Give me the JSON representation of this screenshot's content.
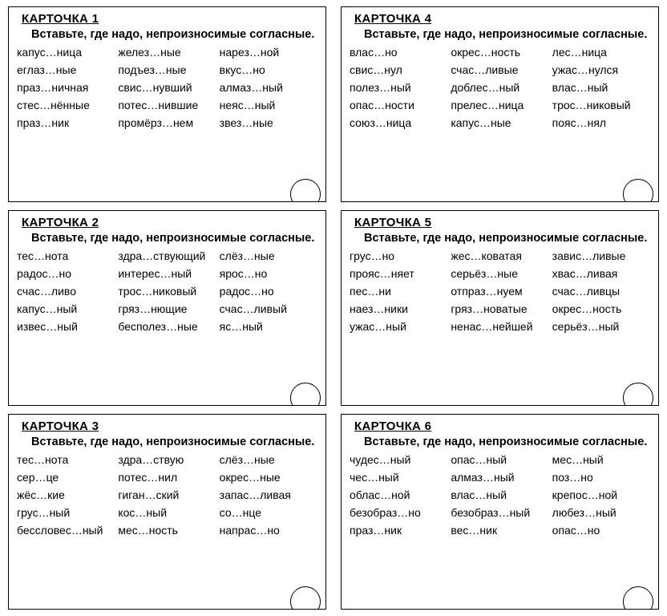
{
  "instruction": "Вставьте, где надо, непроизносимые со­гласные.",
  "cards": [
    {
      "title": "КАРТОЧКА 1",
      "words": [
        "капус…ница",
        "желез…ные",
        "нарез…ной",
        "еглаз…ные",
        "подъез…ные",
        "вкус…но",
        "праз…ничная",
        "свис…нувший",
        "алмаз…ный",
        "стес…нённые",
        "потес…нившие",
        "неяс…ный",
        "праз…ник",
        "промёрз…нем",
        "звез…ные"
      ]
    },
    {
      "title": "КАРТОЧКА 4",
      "words": [
        "влас…но",
        "окрес…ность",
        "лес…ница",
        "свис…нул",
        "счас…ливые",
        "ужас…нулся",
        "полез…ный",
        "доблес…ный",
        "влас…ный",
        "опас…ности",
        "прелес…ница",
        "трос…никовый",
        "союз…ница",
        "капус…ные",
        "пояс…нял"
      ]
    },
    {
      "title": "КАРТОЧКА 2",
      "words": [
        "тес…нота",
        "здра…ствующий",
        "слёз…ные",
        "радос…но",
        "интерес…ный",
        "ярос…но",
        "счас…ливо",
        "трос…никовый",
        "радос…но",
        "капус…ный",
        "гряз…нющие",
        "счас…ливый",
        "извес…ный",
        "бесполез…ные",
        "яс…ный"
      ]
    },
    {
      "title": "КАРТОЧКА 5",
      "words": [
        "грус…но",
        "жес…коватая",
        "завис…ливые",
        "прояс…няет",
        "серьёз…ные",
        "хвас…ливая",
        "пес…ни",
        "отпраз…нуем",
        "счас…ливцы",
        "наез…ники",
        "гряз…новатые",
        "окрес…ность",
        "ужас…ный",
        "ненас…нейшей",
        "серьёз…ный"
      ]
    },
    {
      "title": "КАРТОЧКА 3",
      "words": [
        "тес…нота",
        "здра…ствую",
        "слёз…ные",
        "сер…це",
        "потес…нил",
        "окрес…ные",
        "жёс…кие",
        "гиган…ский",
        "запас…ливая",
        "грус…ный",
        "кос…ный",
        "со…нце",
        "бесcловес…ный",
        "мес…ность",
        "напрас…но"
      ]
    },
    {
      "title": "КАРТОЧКА 6",
      "words": [
        "чудес…ный",
        "опас…ный",
        "мес…ный",
        "чес…ный",
        "алмаз…ный",
        "поз…но",
        "облас…ной",
        "влас…ный",
        "крепос…ной",
        "безобраз…но",
        "безобраз…ный",
        "любез…ный",
        "праз…ник",
        "вес…ник",
        "опас…но"
      ]
    }
  ]
}
